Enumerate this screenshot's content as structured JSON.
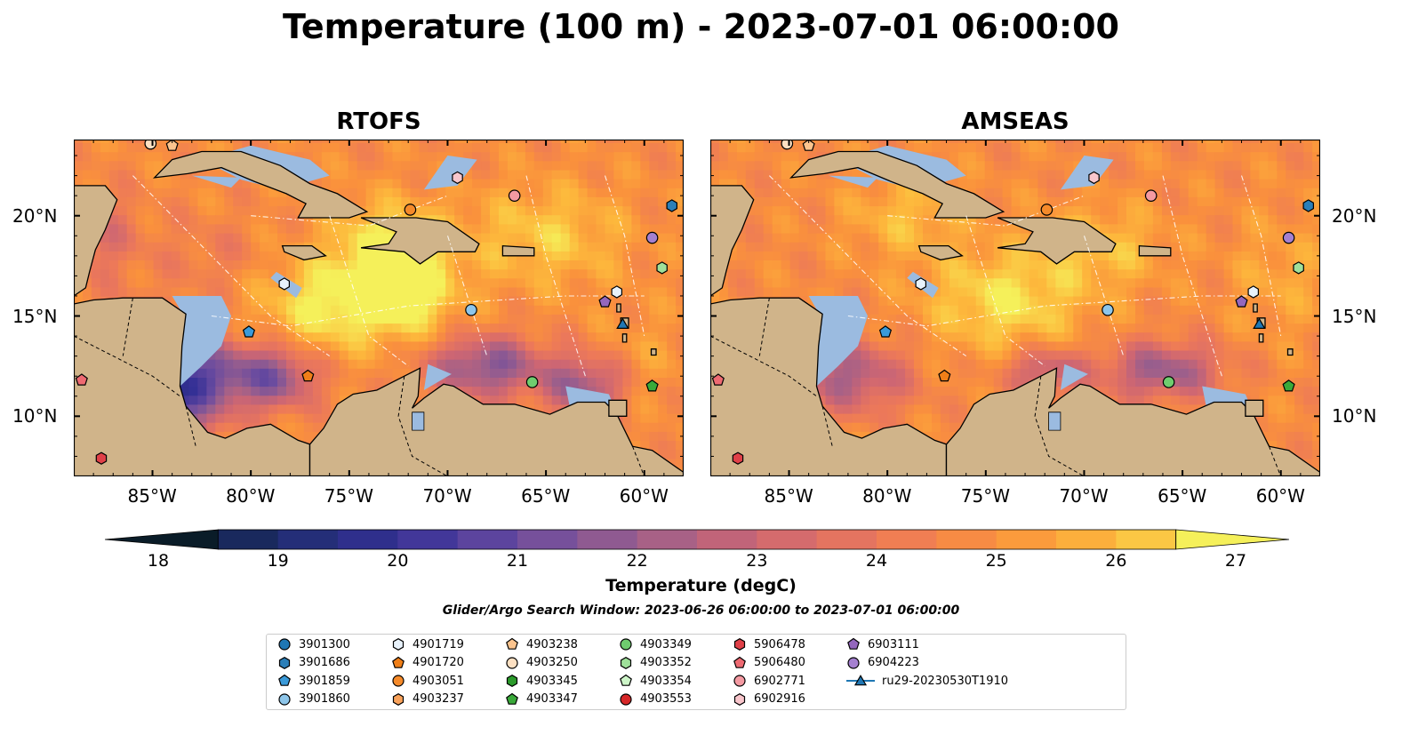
{
  "title": "Temperature (100 m) - 2023-07-01 06:00:00",
  "panels": [
    {
      "name": "RTOFS"
    },
    {
      "name": "AMSEAS"
    }
  ],
  "axes": {
    "lon_ticks": [
      "85°W",
      "80°W",
      "75°W",
      "70°W",
      "65°W",
      "60°W"
    ],
    "lat_ticks": [
      "20°N",
      "15°N",
      "10°N"
    ],
    "lon_range": [
      -89,
      -58
    ],
    "lat_range": [
      7,
      23.8
    ]
  },
  "colorbar": {
    "ticks": [
      "18",
      "19",
      "20",
      "21",
      "22",
      "23",
      "24",
      "25",
      "26",
      "27"
    ],
    "label": "Temperature (degC)",
    "min": 17.5,
    "max": 27
  },
  "search_window": "Glider/Argo Search Window: 2023-06-26 06:00:00 to 2023-07-01 06:00:00",
  "legend": [
    {
      "id": "3901300",
      "marker": "circle",
      "color": "#1f77b4"
    },
    {
      "id": "3901686",
      "marker": "hexagon",
      "color": "#2c7fb8"
    },
    {
      "id": "3901859",
      "marker": "pentagon",
      "color": "#3a9ad9"
    },
    {
      "id": "3901860",
      "marker": "circle",
      "color": "#8ec6ea"
    },
    {
      "id": "4901719",
      "marker": "hexagon",
      "color": "#e8f2fb"
    },
    {
      "id": "4901720",
      "marker": "pentagon",
      "color": "#f07f18"
    },
    {
      "id": "4903051",
      "marker": "circle",
      "color": "#f58a2a"
    },
    {
      "id": "4903237",
      "marker": "hexagon",
      "color": "#f9a25a"
    },
    {
      "id": "4903238",
      "marker": "pentagon",
      "color": "#fcc48e"
    },
    {
      "id": "4903250",
      "marker": "circle",
      "color": "#fde0c2"
    },
    {
      "id": "4903345",
      "marker": "hexagon",
      "color": "#2b9a2b"
    },
    {
      "id": "4903347",
      "marker": "pentagon",
      "color": "#3aaa3a"
    },
    {
      "id": "4903349",
      "marker": "circle",
      "color": "#6fcc6f"
    },
    {
      "id": "4903352",
      "marker": "hexagon",
      "color": "#9fe09a"
    },
    {
      "id": "4903354",
      "marker": "pentagon",
      "color": "#cdf5c8"
    },
    {
      "id": "4903553",
      "marker": "circle",
      "color": "#d62728"
    },
    {
      "id": "5906478",
      "marker": "hexagon",
      "color": "#e04048"
    },
    {
      "id": "5906480",
      "marker": "pentagon",
      "color": "#ee6a72"
    },
    {
      "id": "6902771",
      "marker": "circle",
      "color": "#f49aa2"
    },
    {
      "id": "6902916",
      "marker": "hexagon",
      "color": "#f9c6cc"
    },
    {
      "id": "6903111",
      "marker": "pentagon",
      "color": "#9467bd"
    },
    {
      "id": "6904223",
      "marker": "circle",
      "color": "#a580d0"
    },
    {
      "id": "ru29-20230530T1910",
      "marker": "triangle-line",
      "color": "#1f77b4"
    }
  ],
  "observations": [
    {
      "id": "3901300",
      "lon": -85.1,
      "lat": 23.6
    },
    {
      "id": "4903250",
      "lon": -85.1,
      "lat": 23.6
    },
    {
      "id": "4903238",
      "lon": -84.0,
      "lat": 23.5
    },
    {
      "id": "6902916",
      "lon": -69.5,
      "lat": 21.9
    },
    {
      "id": "6902771",
      "lon": -66.6,
      "lat": 21.0
    },
    {
      "id": "4903051",
      "lon": -71.9,
      "lat": 20.3
    },
    {
      "id": "3901686",
      "lon": -58.6,
      "lat": 20.5
    },
    {
      "id": "6904223",
      "lon": -59.6,
      "lat": 18.9
    },
    {
      "id": "4903352",
      "lon": -59.1,
      "lat": 17.4
    },
    {
      "id": "4901719",
      "lon": -78.3,
      "lat": 16.6
    },
    {
      "id": "4901719",
      "lon": -61.4,
      "lat": 16.2
    },
    {
      "id": "6903111",
      "lon": -62.0,
      "lat": 15.7
    },
    {
      "id": "3901860",
      "lon": -68.8,
      "lat": 15.3
    },
    {
      "id": "ru29-20230530T1910",
      "lon": -61.1,
      "lat": 14.6
    },
    {
      "id": "3901859",
      "lon": -80.1,
      "lat": 14.2
    },
    {
      "id": "4901720",
      "lon": -77.1,
      "lat": 12.0
    },
    {
      "id": "4903349",
      "lon": -65.7,
      "lat": 11.7
    },
    {
      "id": "4903347",
      "lon": -59.6,
      "lat": 11.5
    },
    {
      "id": "5906480",
      "lon": -88.6,
      "lat": 11.8
    },
    {
      "id": "5906478",
      "lon": -87.6,
      "lat": 7.9
    }
  ]
}
